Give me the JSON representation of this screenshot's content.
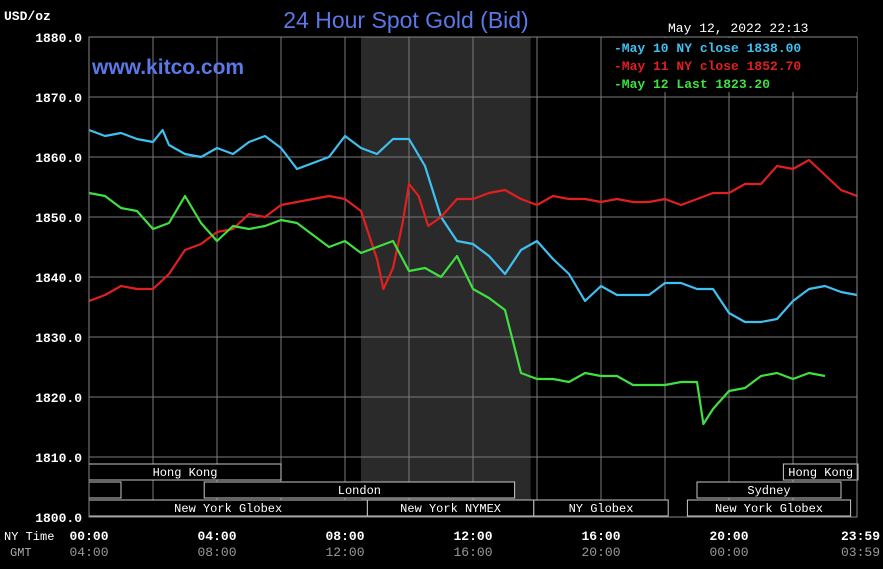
{
  "chart_data": {
    "type": "line",
    "title": "24 Hour Spot Gold (Bid)",
    "unit_label": "USD/oz",
    "watermark": "www.kitco.com",
    "timestamp": "May 12, 2022 22:13",
    "ylim": [
      1800,
      1880
    ],
    "y_ticks": [
      "1880.0",
      "1870.0",
      "1860.0",
      "1850.0",
      "1840.0",
      "1830.0",
      "1820.0",
      "1810.0",
      "1800.0"
    ],
    "x_axis": {
      "ny_label": "NY Time",
      "gmt_label": "GMT",
      "ny_ticks": [
        "00:00",
        "04:00",
        "08:00",
        "12:00",
        "16:00",
        "20:00",
        "23:59"
      ],
      "gmt_ticks": [
        "04:00",
        "08:00",
        "12:00",
        "16:00",
        "20:00",
        "00:00",
        "03:59"
      ],
      "x_range_hours": [
        0,
        24
      ]
    },
    "highlight_window_hours": [
      8.5,
      13.8
    ],
    "series": [
      {
        "name": "May 10 NY close 1838.00",
        "color": "#40c0f0",
        "x": [
          0,
          0.5,
          1,
          1.5,
          2,
          2.3,
          2.5,
          3,
          3.5,
          4,
          4.5,
          5,
          5.5,
          6,
          6.5,
          7,
          7.5,
          8,
          8.5,
          9,
          9.5,
          10,
          10.5,
          11,
          11.5,
          12,
          12.5,
          13,
          13.5,
          14,
          14.5,
          15,
          15.5,
          16,
          16.5,
          17,
          17.5,
          18,
          18.5,
          19,
          19.5,
          20,
          20.5,
          21,
          21.5,
          22,
          22.5,
          23,
          23.5,
          24
        ],
        "values": [
          1864.5,
          1863.5,
          1864,
          1863,
          1862.5,
          1864.5,
          1862,
          1860.5,
          1860,
          1861.5,
          1860.5,
          1862.5,
          1863.5,
          1861.5,
          1858,
          1859,
          1860,
          1863.5,
          1861.5,
          1860.5,
          1863,
          1863,
          1858.5,
          1850,
          1846,
          1845.5,
          1843.5,
          1840.5,
          1844.5,
          1846,
          1843,
          1840.5,
          1836,
          1838.5,
          1837,
          1837,
          1837,
          1839,
          1839,
          1838,
          1838,
          1834,
          1832.5,
          1832.5,
          1833,
          1836,
          1838,
          1838.5,
          1837.5,
          1837
        ]
      },
      {
        "name": "May 11 NY close 1852.70",
        "color": "#e02020",
        "x": [
          0,
          0.5,
          1,
          1.5,
          2,
          2.5,
          3,
          3.5,
          4,
          4.5,
          5,
          5.5,
          6,
          6.5,
          7,
          7.5,
          8,
          8.5,
          9,
          9.2,
          9.5,
          9.8,
          10,
          10.3,
          10.6,
          11,
          11.5,
          12,
          12.5,
          13,
          13.5,
          14,
          14.5,
          15,
          15.5,
          16,
          16.5,
          17,
          17.5,
          18,
          18.5,
          19,
          19.5,
          20,
          20.5,
          21,
          21.5,
          22,
          22.5,
          23,
          23.5,
          24
        ],
        "values": [
          1836,
          1837,
          1838.5,
          1838,
          1838,
          1840.5,
          1844.5,
          1845.5,
          1847.5,
          1848,
          1850.5,
          1850,
          1852,
          1852.5,
          1853,
          1853.5,
          1853,
          1851,
          1843,
          1838,
          1841.5,
          1849,
          1855.5,
          1853.5,
          1848.5,
          1850,
          1853,
          1853,
          1854,
          1854.5,
          1853,
          1852,
          1853.5,
          1853,
          1853,
          1852.5,
          1853,
          1852.5,
          1852.5,
          1853,
          1852,
          1853,
          1854,
          1854,
          1855.5,
          1855.5,
          1858.5,
          1858,
          1859.5,
          1857,
          1854.5,
          1853.5
        ]
      },
      {
        "name": "May 12 Last 1823.20",
        "color": "#40e040",
        "x": [
          0,
          0.5,
          1,
          1.5,
          2,
          2.5,
          3,
          3.5,
          4,
          4.5,
          5,
          5.5,
          6,
          6.5,
          7,
          7.5,
          8,
          8.5,
          9,
          9.5,
          10,
          10.5,
          11,
          11.5,
          12,
          12.5,
          13,
          13.5,
          14,
          14.5,
          15,
          15.5,
          16,
          16.5,
          17,
          17.5,
          18,
          18.5,
          19,
          19.2,
          19.5,
          20,
          20.5,
          21,
          21.5,
          22,
          22.5,
          23
        ],
        "values": [
          1854,
          1853.5,
          1851.5,
          1851,
          1848,
          1849,
          1853.5,
          1849,
          1846,
          1848.5,
          1848,
          1848.5,
          1849.5,
          1849,
          1847,
          1845,
          1846,
          1844,
          1845,
          1846,
          1841,
          1841.5,
          1840,
          1843.5,
          1838,
          1836.5,
          1834.5,
          1824,
          1823,
          1823,
          1822.5,
          1824,
          1823.5,
          1823.5,
          1822,
          1822,
          1822,
          1822.5,
          1822.5,
          1815.5,
          1818,
          1821,
          1821.5,
          1823.5,
          1824,
          1823,
          1824,
          1823.5
        ]
      }
    ],
    "sessions": [
      {
        "label": "Hong Kong",
        "start": 0,
        "end": 6,
        "row": 1
      },
      {
        "label": "Hong Kong",
        "start": 21.7,
        "end": 25.2,
        "row": 1
      },
      {
        "label": "",
        "start": 0,
        "end": 1,
        "row": 2
      },
      {
        "label": "London",
        "start": 3.6,
        "end": 13.3,
        "row": 2
      },
      {
        "label": "Sydney",
        "start": 19,
        "end": 23.5,
        "row": 2
      },
      {
        "label": "New York Globex",
        "start": 0,
        "end": 8.7,
        "row": 3
      },
      {
        "label": "New York NYMEX",
        "start": 8.7,
        "end": 13.9,
        "row": 3
      },
      {
        "label": "NY Globex",
        "start": 13.9,
        "end": 18.1,
        "row": 3
      },
      {
        "label": "New York Globex",
        "start": 18.7,
        "end": 23.8,
        "row": 3
      }
    ]
  }
}
